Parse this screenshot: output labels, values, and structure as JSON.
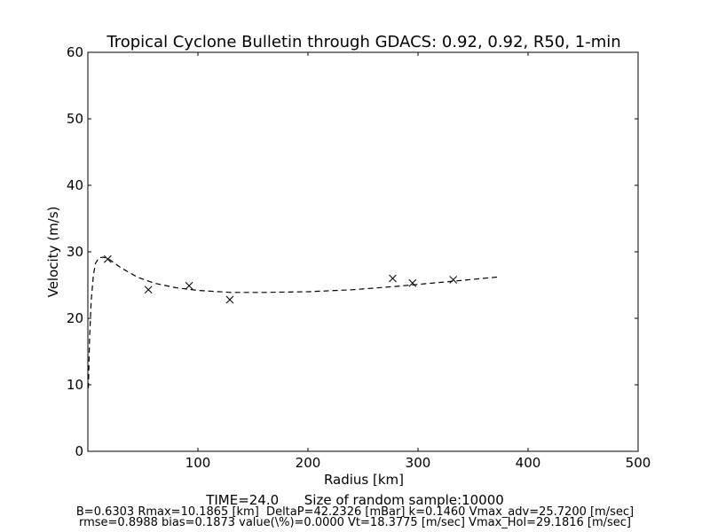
{
  "chart_data": {
    "type": "scatter",
    "title": "Tropical Cyclone Bulletin through GDACS: 0.92, 0.92, R50, 1-min",
    "xlabel": "Radius [km]",
    "ylabel": "Velocity (m/s)",
    "xlim": [
      0,
      500
    ],
    "ylim": [
      0,
      60
    ],
    "xticks": [
      100,
      200,
      300,
      400,
      500
    ],
    "yticks": [
      0,
      10,
      20,
      30,
      40,
      50,
      60
    ],
    "grid": false,
    "series": [
      {
        "kind": "observations",
        "marker": "x",
        "x": [
          18,
          55,
          92,
          129,
          277,
          295,
          332
        ],
        "y": [
          28.9,
          24.3,
          24.9,
          22.8,
          26.0,
          25.3,
          25.8
        ]
      },
      {
        "kind": "fitted-profile",
        "style": "dashed",
        "x": [
          0.5,
          1.5,
          3,
          5,
          7,
          10,
          14,
          20,
          30,
          45,
          60,
          80,
          100,
          130,
          160,
          200,
          240,
          280,
          320,
          372
        ],
        "y": [
          9.5,
          17.0,
          22.5,
          26.5,
          28.3,
          29.1,
          29.2,
          28.8,
          27.6,
          26.2,
          25.3,
          24.6,
          24.2,
          23.9,
          23.9,
          24.0,
          24.3,
          24.8,
          25.4,
          26.2
        ]
      }
    ]
  },
  "footer": {
    "time": "TIME=24.0      Size of random sample:10000",
    "line1": "B=0.6303 Rmax=10.1865 [km]  DeltaP=42.2326 [mBar] k=0.1460 Vmax_adv=25.7200 [m/sec]",
    "line2": "rmse=0.8988 bias=0.1873 value(\\%)=0.0000 Vt=18.3775 [m/sec] Vmax_Hol=29.1816 [m/sec]"
  }
}
